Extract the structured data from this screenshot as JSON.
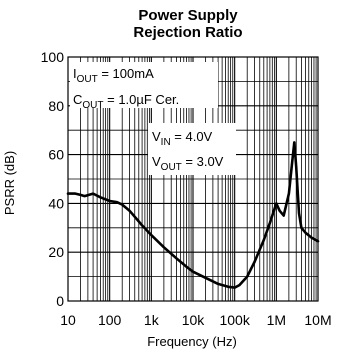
{
  "chart_data": {
    "type": "line",
    "title_line1": "Power Supply",
    "title_line2": "Rejection Ratio",
    "xlabel": "Frequency (Hz)",
    "ylabel": "PSRR (dB)",
    "x_scale": "log",
    "xlim": [
      10,
      10000000
    ],
    "ylim": [
      0,
      100
    ],
    "grid": true,
    "x_ticks": [
      {
        "value": 10,
        "label": "10"
      },
      {
        "value": 100,
        "label": "100"
      },
      {
        "value": 1000,
        "label": "1k"
      },
      {
        "value": 10000,
        "label": "10k"
      },
      {
        "value": 100000,
        "label": "100k"
      },
      {
        "value": 1000000,
        "label": "1M"
      },
      {
        "value": 10000000,
        "label": "10M"
      }
    ],
    "y_ticks": [
      {
        "value": 0,
        "label": "0"
      },
      {
        "value": 20,
        "label": "20"
      },
      {
        "value": 40,
        "label": "40"
      },
      {
        "value": 60,
        "label": "60"
      },
      {
        "value": 80,
        "label": "80"
      },
      {
        "value": 100,
        "label": "100"
      }
    ],
    "annotations": {
      "iout": {
        "main": "I",
        "sub": "OUT",
        "rest": " = 100mA"
      },
      "cout": {
        "main": "C",
        "sub": "OUT",
        "rest": " = 1.0µF Cer."
      },
      "vin": {
        "main": "V",
        "sub": "IN",
        "rest": " = 4.0V"
      },
      "vout": {
        "main": "V",
        "sub": "OUT",
        "rest": " = 3.0V"
      }
    },
    "series": [
      {
        "x": [
          10,
          15,
          20,
          25,
          40,
          60,
          100,
          150,
          200,
          300,
          400,
          600,
          1000,
          2000,
          4000,
          7000,
          10000,
          20000,
          40000,
          70000,
          100000,
          130000,
          200000,
          300000,
          500000,
          700000,
          1000000,
          1200000,
          1500000,
          2000000,
          2400000,
          2700000,
          3000000,
          3500000,
          4000000,
          5000000,
          7000000,
          10000000
        ],
        "values": [
          44,
          44,
          43.5,
          43,
          44,
          42.5,
          41,
          40.5,
          39.5,
          37,
          34.5,
          31,
          27,
          22,
          17.5,
          14,
          12,
          9.5,
          7,
          5.8,
          5.5,
          6.5,
          10,
          16,
          25,
          32,
          40,
          37,
          35,
          44,
          57,
          65,
          55,
          36,
          30,
          28,
          26,
          24.5
        ]
      }
    ]
  }
}
